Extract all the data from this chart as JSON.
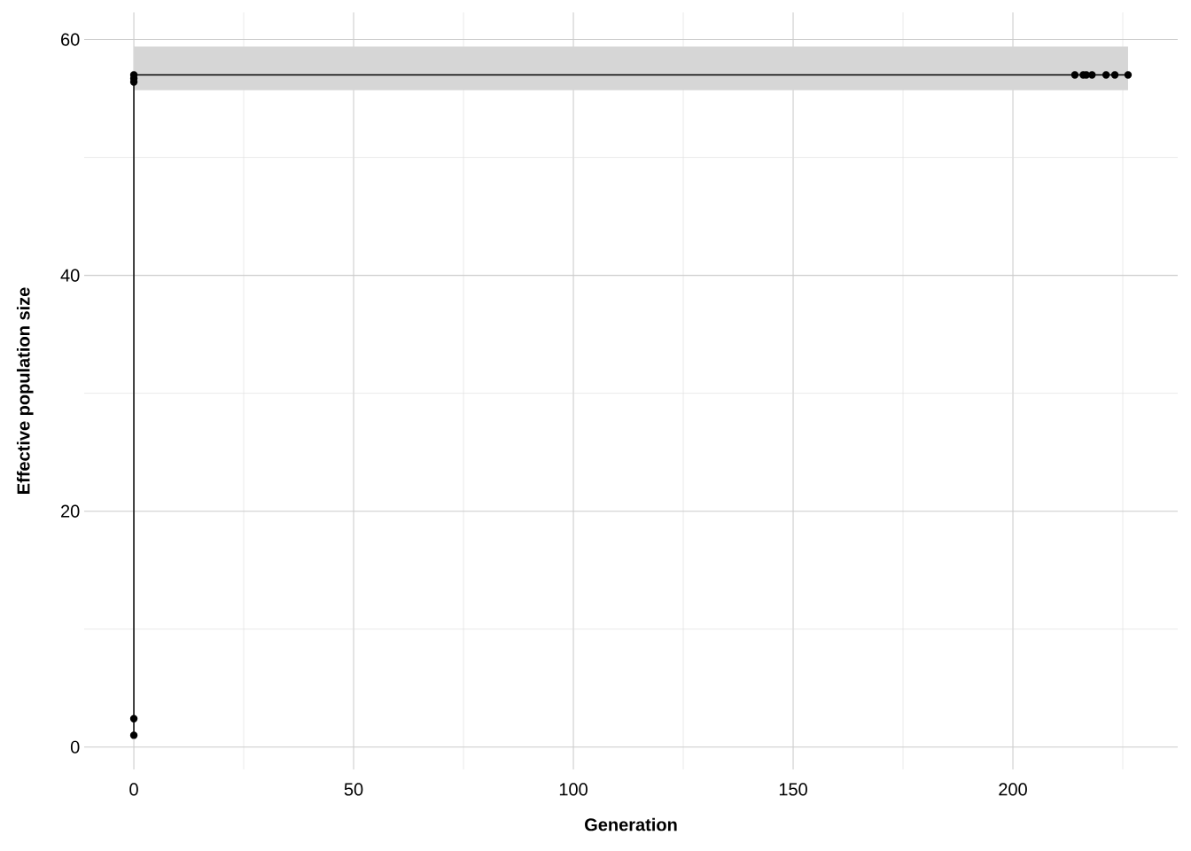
{
  "chart_data": {
    "type": "line",
    "xlabel": "Generation",
    "ylabel": "Effective population size",
    "x": [
      0,
      0,
      0,
      0,
      0,
      214.1,
      216,
      216.7,
      218,
      221.2,
      223.2,
      226.2
    ],
    "series": [
      {
        "color": "#000000",
        "values": [
          1.0,
          2.4,
          56.4,
          56.7,
          57.0,
          57.0,
          57.0,
          57.0,
          57.0,
          57.0,
          57.0,
          57.0
        ],
        "lower": [
          null,
          null,
          null,
          null,
          55.7,
          55.7,
          55.7,
          55.7,
          55.7,
          55.7,
          55.7,
          55.7
        ],
        "upper": [
          null,
          null,
          null,
          null,
          59.4,
          59.4,
          59.4,
          59.4,
          59.4,
          59.4,
          59.4,
          59.4
        ]
      }
    ],
    "xlim": [
      -11.3,
      237.5
    ],
    "ylim": [
      -1.9,
      62.3
    ],
    "xticks": [
      0,
      {
        "value": 25,
        "label": null
      },
      50,
      {
        "value": 75,
        "label": null
      },
      100,
      {
        "value": 125,
        "label": null
      },
      150,
      {
        "value": 175,
        "label": null
      },
      200,
      {
        "value": 225,
        "label": null
      }
    ],
    "yticks": [
      0,
      {
        "value": 10,
        "label": null
      },
      20,
      {
        "value": 30,
        "label": null
      },
      40,
      {
        "value": 50,
        "label": null
      },
      60
    ],
    "grid": true,
    "marker": "circle",
    "line_style": "solid"
  }
}
